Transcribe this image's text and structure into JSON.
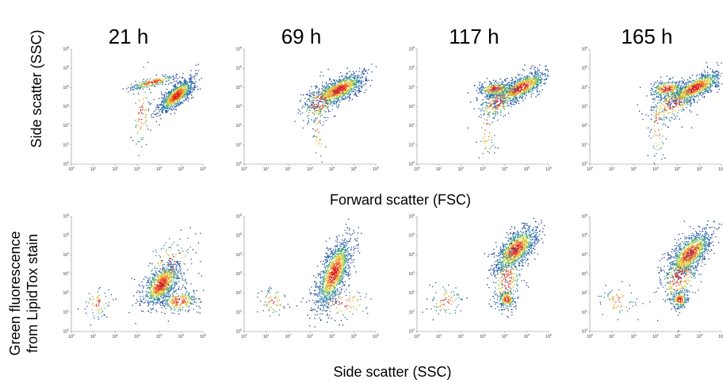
{
  "figure": {
    "timepoints": [
      "21 h",
      "69 h",
      "117 h",
      "165 h"
    ],
    "row1_ylabel": "Side scatter (SSC)",
    "row1_xlabel": "Forward scatter (FSC)",
    "row2_ylabel": [
      "Green fluorescence",
      "from LipidTox stain"
    ],
    "row2_xlabel": "Side scatter (SSC)"
  },
  "chart_data": [
    {
      "type": "scatter",
      "row": "scatter",
      "time": "21 h",
      "xlabel": "Forward scatter (FSC)",
      "ylabel": "Side scatter (SSC)",
      "xscale": "log",
      "yscale": "log",
      "xlim": [
        1,
        1000000
      ],
      "ylim": [
        1,
        1000000
      ],
      "tick_exponents": [
        0,
        1,
        2,
        3,
        4,
        5,
        6
      ],
      "populations": [
        {
          "x": 60000,
          "y": 4000,
          "count": 900,
          "sx": 0.2,
          "sy": 0.22,
          "rho": 0.75
        },
        {
          "x": 5000,
          "y": 20000,
          "count": 220,
          "sx": 0.28,
          "sy": 0.1,
          "rho": 0.8
        },
        {
          "x": 1500,
          "y": 500,
          "count": 80,
          "sx": 0.1,
          "sy": 0.55,
          "rho": 0.2
        }
      ]
    },
    {
      "type": "scatter",
      "row": "scatter",
      "time": "69 h",
      "xlabel": "Forward scatter (FSC)",
      "ylabel": "Side scatter (SSC)",
      "xscale": "log",
      "yscale": "log",
      "xlim": [
        1,
        1000000
      ],
      "ylim": [
        1,
        1000000
      ],
      "tick_exponents": [
        0,
        1,
        2,
        3,
        4,
        5,
        6
      ],
      "populations": [
        {
          "x": 20000,
          "y": 8000,
          "count": 1000,
          "sx": 0.3,
          "sy": 0.22,
          "rho": 0.7
        },
        {
          "x": 3000,
          "y": 2000,
          "count": 200,
          "sx": 0.25,
          "sy": 0.3,
          "rho": 0.5
        },
        {
          "x": 2500,
          "y": 60,
          "count": 40,
          "sx": 0.08,
          "sy": 0.45,
          "rho": 0.0
        }
      ]
    },
    {
      "type": "scatter",
      "row": "scatter",
      "time": "117 h",
      "xlabel": "Forward scatter (FSC)",
      "ylabel": "Side scatter (SSC)",
      "xscale": "log",
      "yscale": "log",
      "xlim": [
        1,
        1000000
      ],
      "ylim": [
        1,
        1000000
      ],
      "tick_exponents": [
        0,
        1,
        2,
        3,
        4,
        5,
        6
      ],
      "populations": [
        {
          "x": 50000,
          "y": 10000,
          "count": 900,
          "sx": 0.32,
          "sy": 0.22,
          "rho": 0.75
        },
        {
          "x": 3500,
          "y": 9000,
          "count": 320,
          "sx": 0.2,
          "sy": 0.1,
          "rho": 0.2
        },
        {
          "x": 5000,
          "y": 2000,
          "count": 200,
          "sx": 0.25,
          "sy": 0.25,
          "rho": 0.5
        },
        {
          "x": 1500,
          "y": 80,
          "count": 60,
          "sx": 0.1,
          "sy": 0.5,
          "rho": 0.0
        }
      ]
    },
    {
      "type": "scatter",
      "row": "scatter",
      "time": "165 h",
      "xlabel": "Forward scatter (FSC)",
      "ylabel": "Side scatter (SSC)",
      "xscale": "log",
      "yscale": "log",
      "xlim": [
        1,
        1000000
      ],
      "ylim": [
        1,
        1000000
      ],
      "tick_exponents": [
        0,
        1,
        2,
        3,
        4,
        5,
        6
      ],
      "populations": [
        {
          "x": 60000,
          "y": 10000,
          "count": 900,
          "sx": 0.32,
          "sy": 0.22,
          "rho": 0.75
        },
        {
          "x": 3000,
          "y": 9000,
          "count": 280,
          "sx": 0.2,
          "sy": 0.12,
          "rho": 0.2
        },
        {
          "x": 6000,
          "y": 1500,
          "count": 220,
          "sx": 0.3,
          "sy": 0.25,
          "rho": 0.5
        },
        {
          "x": 1200,
          "y": 100,
          "count": 70,
          "sx": 0.1,
          "sy": 0.5,
          "rho": 0.0
        }
      ]
    },
    {
      "type": "scatter",
      "row": "fluorescence",
      "time": "21 h",
      "xlabel": "Side scatter (SSC)",
      "ylabel": "Green fluorescence from LipidTox stain",
      "xscale": "log",
      "yscale": "log",
      "xlim": [
        1,
        1000000
      ],
      "ylim": [
        1,
        1000000
      ],
      "tick_exponents": [
        0,
        1,
        2,
        3,
        4,
        5,
        6
      ],
      "populations": [
        {
          "x": 12000,
          "y": 300,
          "count": 900,
          "sx": 0.22,
          "sy": 0.28,
          "rho": 0.55
        },
        {
          "x": 80000,
          "y": 40,
          "count": 250,
          "sx": 0.22,
          "sy": 0.15,
          "rho": 0.1
        },
        {
          "x": 15,
          "y": 30,
          "count": 70,
          "sx": 0.15,
          "sy": 0.2,
          "rho": 0.0
        },
        {
          "x": 30000,
          "y": 3000,
          "count": 120,
          "sx": 0.3,
          "sy": 0.4,
          "rho": 0.3
        }
      ]
    },
    {
      "type": "scatter",
      "row": "fluorescence",
      "time": "69 h",
      "xlabel": "Side scatter (SSC)",
      "ylabel": "Green fluorescence from LipidTox stain",
      "xscale": "log",
      "yscale": "log",
      "xlim": [
        1,
        1000000
      ],
      "ylim": [
        1,
        1000000
      ],
      "tick_exponents": [
        0,
        1,
        2,
        3,
        4,
        5,
        6
      ],
      "populations": [
        {
          "x": 12000,
          "y": 1200,
          "count": 1200,
          "sx": 0.2,
          "sy": 0.45,
          "rho": 0.65
        },
        {
          "x": 20,
          "y": 40,
          "count": 70,
          "sx": 0.15,
          "sy": 0.2,
          "rho": 0.0
        },
        {
          "x": 30000,
          "y": 30,
          "count": 100,
          "sx": 0.35,
          "sy": 0.2,
          "rho": 0.0
        }
      ]
    },
    {
      "type": "scatter",
      "row": "fluorescence",
      "time": "117 h",
      "xlabel": "Side scatter (SSC)",
      "ylabel": "Green fluorescence from LipidTox stain",
      "xscale": "log",
      "yscale": "log",
      "xlim": [
        1,
        1000000
      ],
      "ylim": [
        1,
        1000000
      ],
      "tick_exponents": [
        0,
        1,
        2,
        3,
        4,
        5,
        6
      ],
      "populations": [
        {
          "x": 30000,
          "y": 20000,
          "count": 1000,
          "sx": 0.25,
          "sy": 0.3,
          "rho": 0.65
        },
        {
          "x": 12000,
          "y": 500,
          "count": 250,
          "sx": 0.18,
          "sy": 0.45,
          "rho": 0.3
        },
        {
          "x": 12000,
          "y": 50,
          "count": 180,
          "sx": 0.1,
          "sy": 0.12,
          "rho": 0.0
        },
        {
          "x": 20,
          "y": 40,
          "count": 80,
          "sx": 0.2,
          "sy": 0.2,
          "rho": 0.0
        }
      ]
    },
    {
      "type": "scatter",
      "row": "fluorescence",
      "time": "165 h",
      "xlabel": "Side scatter (SSC)",
      "ylabel": "Green fluorescence from LipidTox stain",
      "xscale": "log",
      "yscale": "log",
      "xlim": [
        1,
        1000000
      ],
      "ylim": [
        1,
        1000000
      ],
      "tick_exponents": [
        0,
        1,
        2,
        3,
        4,
        5,
        6
      ],
      "populations": [
        {
          "x": 35000,
          "y": 12000,
          "count": 1000,
          "sx": 0.25,
          "sy": 0.3,
          "rho": 0.65
        },
        {
          "x": 12000,
          "y": 800,
          "count": 280,
          "sx": 0.25,
          "sy": 0.4,
          "rho": 0.4
        },
        {
          "x": 12000,
          "y": 50,
          "count": 180,
          "sx": 0.1,
          "sy": 0.12,
          "rho": 0.0
        },
        {
          "x": 20,
          "y": 40,
          "count": 70,
          "sx": 0.2,
          "sy": 0.2,
          "rho": 0.0
        }
      ]
    }
  ]
}
